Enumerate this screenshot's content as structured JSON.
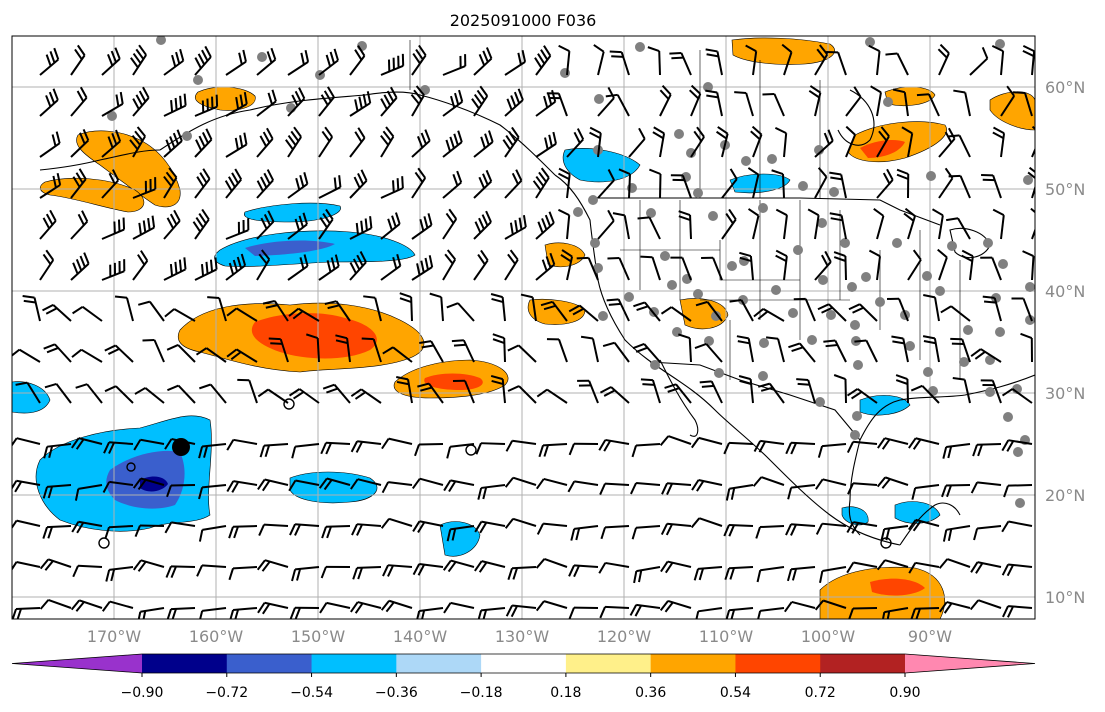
{
  "title": "2025091000 F036",
  "colorbar": {
    "colors": [
      "#9932cc",
      "#00008b",
      "#3a5fcd",
      "#00bfff",
      "#add8f7",
      "#ffffff",
      "#fff08a",
      "#ffa500",
      "#ff4500",
      "#b22222",
      "#ff88b0"
    ],
    "labels": [
      "−0.90",
      "−0.72",
      "−0.54",
      "−0.36",
      "−0.18",
      "0.18",
      "0.36",
      "0.54",
      "0.72",
      "0.90"
    ]
  },
  "map": {
    "lat_labels": [
      "60°N",
      "50°N",
      "40°N",
      "30°N",
      "20°N",
      "10°N"
    ],
    "lon_labels": [
      "170°W",
      "160°W",
      "150°W",
      "140°W",
      "130°W",
      "120°W",
      "110°W",
      "100°W",
      "90°W"
    ],
    "grid": true,
    "marker_colors": {
      "coastline": "#000000",
      "station_dot": "#808080",
      "center_dot": "#000000",
      "grid": "#b0b0b0"
    }
  }
}
